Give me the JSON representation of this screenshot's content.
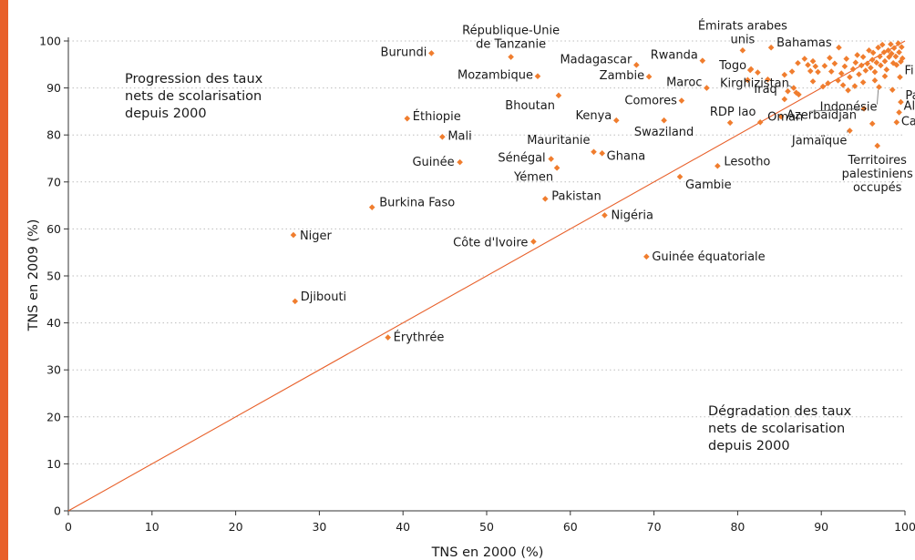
{
  "colors": {
    "accent": "#e8602a",
    "point": "#f07d2e",
    "grid": "#bdbdbd",
    "axis": "#333333"
  },
  "chart_data": {
    "type": "scatter",
    "xlabel": "TNS en 2000 (%)",
    "ylabel": "TNS en 2009 (%)",
    "xlim": [
      0,
      100
    ],
    "ylim": [
      0,
      100
    ],
    "xticks": [
      0,
      10,
      20,
      30,
      40,
      50,
      60,
      70,
      80,
      90,
      100
    ],
    "yticks": [
      0,
      10,
      20,
      30,
      40,
      50,
      60,
      70,
      80,
      90,
      100
    ],
    "grid": "horizontal dotted",
    "reference_line": "y = x",
    "region_notes": [
      [
        "Progression des taux",
        "nets de scolarisation",
        "depuis 2000"
      ],
      [
        "Dégradation des taux",
        "nets de scolarisation",
        "depuis 2000"
      ]
    ],
    "labeled_points": [
      {
        "label": [
          "Burundi"
        ],
        "x": 43.4,
        "y": 97.4
      },
      {
        "label": [
          "République-Unie",
          "de Tanzanie"
        ],
        "x": 52.9,
        "y": 96.6
      },
      {
        "label": [
          "Madagascar"
        ],
        "x": 67.9,
        "y": 94.9
      },
      {
        "label": [
          "Rwanda"
        ],
        "x": 75.8,
        "y": 95.8
      },
      {
        "label": [
          "Émirats arabes",
          "unis"
        ],
        "x": 80.6,
        "y": 98.0
      },
      {
        "label": [
          "Bahamas"
        ],
        "x": 84.0,
        "y": 98.6
      },
      {
        "label": [
          "Togo"
        ],
        "x": 81.6,
        "y": 94.0
      },
      {
        "label": [
          "Mozambique"
        ],
        "x": 56.1,
        "y": 92.5
      },
      {
        "label": [
          "Zambie"
        ],
        "x": 69.4,
        "y": 92.4
      },
      {
        "label": [
          "Maroc"
        ],
        "x": 76.3,
        "y": 90.0
      },
      {
        "label": [
          "Kirghizistan"
        ],
        "x": 86.7,
        "y": 90.0
      },
      {
        "label": [
          "Iraq"
        ],
        "x": 85.6,
        "y": 87.6
      },
      {
        "label": [
          "Bhoutan"
        ],
        "x": 58.6,
        "y": 88.4
      },
      {
        "label": [
          "Comores"
        ],
        "x": 73.3,
        "y": 87.3
      },
      {
        "label": [
          "Indonésie"
        ],
        "x": 96.9,
        "y": 90.2
      },
      {
        "label": [
          "Fi"
        ],
        "x": 99.4,
        "y": 92.3
      },
      {
        "label": [
          "Par"
        ],
        "x": 99.5,
        "y": 87.0
      },
      {
        "label": [
          "Al"
        ],
        "x": 99.3,
        "y": 84.8
      },
      {
        "label": [
          "Ca"
        ],
        "x": 99.0,
        "y": 82.7
      },
      {
        "label": [
          "Azerbaïdjan"
        ],
        "x": 95.1,
        "y": 85.6
      },
      {
        "label": [
          "Kenya"
        ],
        "x": 65.5,
        "y": 83.1
      },
      {
        "label": [
          "RDP lao"
        ],
        "x": 79.1,
        "y": 82.6
      },
      {
        "label": [
          "Oman"
        ],
        "x": 82.7,
        "y": 82.7
      },
      {
        "label": [
          "Swaziland"
        ],
        "x": 71.2,
        "y": 83.1
      },
      {
        "label": [
          "Éthiopie"
        ],
        "x": 40.5,
        "y": 83.5
      },
      {
        "label": [
          "Mali"
        ],
        "x": 44.7,
        "y": 79.6
      },
      {
        "label": [
          "Mauritanie"
        ],
        "x": 62.8,
        "y": 76.4
      },
      {
        "label": [
          "Jamaïque"
        ],
        "x": 93.4,
        "y": 80.9
      },
      {
        "label": [
          "Territoires",
          "palestiniens",
          "occupés"
        ],
        "x": 96.7,
        "y": 77.7
      },
      {
        "label": [
          "Sénégal"
        ],
        "x": 57.7,
        "y": 74.9
      },
      {
        "label": [
          "Ghana"
        ],
        "x": 63.8,
        "y": 76.1
      },
      {
        "label": [
          "Yémen"
        ],
        "x": 58.4,
        "y": 73.0
      },
      {
        "label": [
          "Guinée"
        ],
        "x": 46.8,
        "y": 74.2
      },
      {
        "label": [
          "Lesotho"
        ],
        "x": 77.6,
        "y": 73.4
      },
      {
        "label": [
          "Gambie"
        ],
        "x": 73.1,
        "y": 71.1
      },
      {
        "label": [
          "Pakistan"
        ],
        "x": 57.0,
        "y": 66.4
      },
      {
        "label": [
          "Burkina Faso"
        ],
        "x": 36.3,
        "y": 64.6
      },
      {
        "label": [
          "Nigéria"
        ],
        "x": 64.1,
        "y": 62.9
      },
      {
        "label": [
          "Niger"
        ],
        "x": 26.9,
        "y": 58.7
      },
      {
        "label": [
          "Côte d'Ivoire"
        ],
        "x": 55.6,
        "y": 57.3
      },
      {
        "label": [
          "Guinée équatoriale"
        ],
        "x": 69.1,
        "y": 54.1
      },
      {
        "label": [
          "Djibouti"
        ],
        "x": 27.1,
        "y": 44.6
      },
      {
        "label": [
          "Érythrée"
        ],
        "x": 38.2,
        "y": 36.9
      }
    ],
    "unlabeled_points": [
      [
        81.5,
        93.8
      ],
      [
        82.4,
        93.3
      ],
      [
        83.6,
        91.8
      ],
      [
        86.0,
        89.3
      ],
      [
        87.0,
        89.0
      ],
      [
        87.3,
        88.6
      ],
      [
        85.6,
        92.8
      ],
      [
        86.5,
        93.5
      ],
      [
        87.2,
        95.3
      ],
      [
        88.0,
        96.2
      ],
      [
        88.4,
        94.9
      ],
      [
        88.7,
        93.6
      ],
      [
        89.0,
        95.7
      ],
      [
        89.3,
        94.6
      ],
      [
        89.6,
        93.4
      ],
      [
        89.0,
        91.4
      ],
      [
        90.4,
        94.7
      ],
      [
        91.0,
        96.4
      ],
      [
        91.2,
        93.5
      ],
      [
        91.6,
        95.2
      ],
      [
        92.0,
        91.6
      ],
      [
        92.4,
        93.1
      ],
      [
        92.8,
        94.6
      ],
      [
        93.0,
        96.2
      ],
      [
        93.4,
        92.3
      ],
      [
        93.8,
        94.0
      ],
      [
        94.1,
        95.4
      ],
      [
        94.3,
        97.0
      ],
      [
        94.5,
        92.9
      ],
      [
        94.8,
        94.8
      ],
      [
        95.0,
        96.6
      ],
      [
        95.3,
        93.7
      ],
      [
        95.5,
        95.2
      ],
      [
        95.7,
        98.0
      ],
      [
        95.9,
        94.3
      ],
      [
        96.1,
        96.0
      ],
      [
        96.2,
        97.5
      ],
      [
        96.4,
        93.4
      ],
      [
        96.6,
        95.4
      ],
      [
        96.8,
        98.6
      ],
      [
        97.0,
        96.7
      ],
      [
        97.1,
        94.8
      ],
      [
        97.3,
        99.2
      ],
      [
        97.5,
        97.6
      ],
      [
        97.6,
        95.7
      ],
      [
        97.8,
        93.9
      ],
      [
        98.0,
        98.0
      ],
      [
        98.1,
        96.6
      ],
      [
        98.3,
        99.3
      ],
      [
        98.4,
        97.3
      ],
      [
        98.6,
        95.3
      ],
      [
        98.7,
        98.5
      ],
      [
        98.9,
        96.7
      ],
      [
        99.0,
        94.9
      ],
      [
        99.2,
        99.5
      ],
      [
        99.3,
        97.6
      ],
      [
        99.5,
        95.6
      ],
      [
        99.6,
        98.7
      ],
      [
        99.7,
        96.3
      ],
      [
        92.1,
        98.6
      ],
      [
        90.8,
        91.0
      ],
      [
        93.2,
        89.5
      ],
      [
        94.0,
        90.4
      ],
      [
        96.4,
        91.6
      ],
      [
        97.6,
        92.5
      ],
      [
        98.5,
        89.6
      ],
      [
        85.2,
        83.9
      ],
      [
        96.1,
        82.4
      ],
      [
        81.2,
        91.7
      ],
      [
        90.2,
        90.3
      ],
      [
        92.6,
        90.6
      ],
      [
        95.0,
        91.2
      ]
    ],
    "footnote": ""
  }
}
